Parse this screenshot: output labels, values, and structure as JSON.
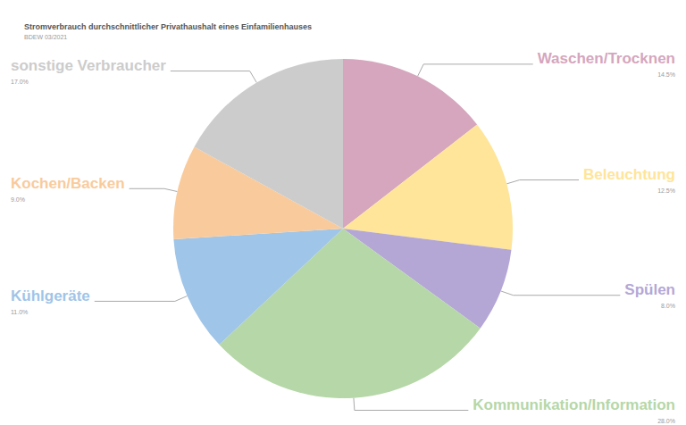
{
  "chart_data": {
    "type": "pie",
    "title": "Stromverbrauch durchschnittlicher Privathaushalt eines Einfamilienhauses",
    "subtitle": "BDEW 03/2021",
    "categories": [
      "Waschen/Trocknen",
      "Beleuchtung",
      "Spülen",
      "Kommunikation/Information",
      "Kühlgeräte",
      "Kochen/Backen",
      "sonstige Verbraucher"
    ],
    "values": [
      14.5,
      12.5,
      8.0,
      28.0,
      11.0,
      9.0,
      17.0
    ],
    "value_labels": [
      "14.5%",
      "12.5%",
      "8.0%",
      "28.0%",
      "11.0%",
      "9.0%",
      "17.0%"
    ],
    "colors": [
      "#d5a6bd",
      "#ffe599",
      "#b4a7d6",
      "#b6d7a8",
      "#9fc5e8",
      "#f9cb9c",
      "#cccccc"
    ],
    "data_labels": true
  }
}
